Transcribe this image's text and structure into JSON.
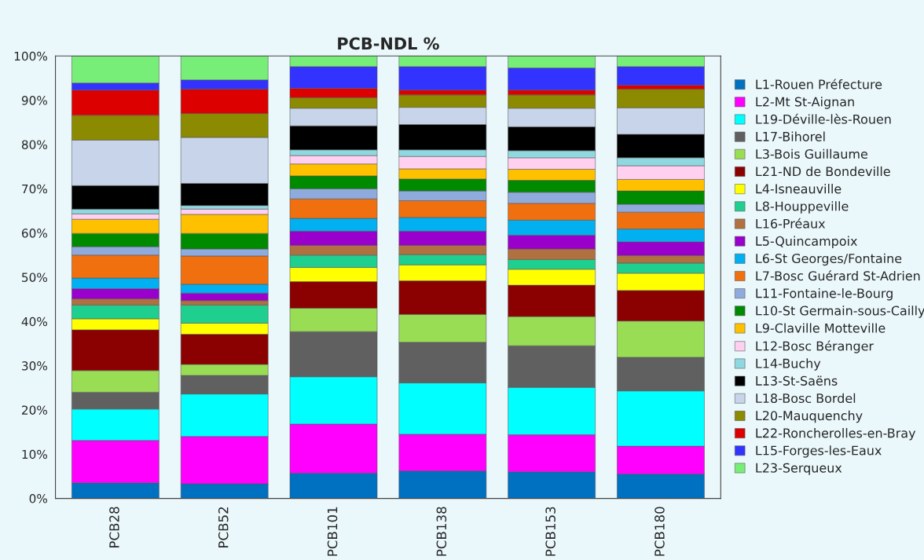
{
  "chart_data": {
    "type": "bar",
    "title": "PCB-NDL %",
    "stacked": true,
    "categories": [
      "PCB28",
      "PCB52",
      "PCB101",
      "PCB138",
      "PCB153",
      "PCB180"
    ],
    "ylim": [
      0,
      100
    ],
    "yticks": [
      {
        "value": 0,
        "label": "0%"
      },
      {
        "value": 10,
        "label": "10%"
      },
      {
        "value": 20,
        "label": "20%"
      },
      {
        "value": 30,
        "label": "30%"
      },
      {
        "value": 40,
        "label": "40%"
      },
      {
        "value": 50,
        "label": "50%"
      },
      {
        "value": 60,
        "label": "60%"
      },
      {
        "value": 70,
        "label": "70%"
      },
      {
        "value": 80,
        "label": "80%"
      },
      {
        "value": 90,
        "label": "90%"
      },
      {
        "value": 100,
        "label": "100%"
      }
    ],
    "grid": false,
    "legend": "right",
    "series": [
      {
        "name": "L1-Rouen Préfecture",
        "color": "#0070c0",
        "values": [
          3.5,
          3.3,
          5.7,
          6.2,
          6.0,
          5.5
        ]
      },
      {
        "name": "L2-Mt St-Aignan",
        "color": "#ff00ff",
        "values": [
          9.6,
          10.7,
          11.1,
          8.3,
          8.4,
          6.3
        ]
      },
      {
        "name": "L19-Déville-lès-Rouen",
        "color": "#00ffff",
        "values": [
          7.1,
          9.6,
          10.7,
          11.6,
          10.7,
          12.5
        ]
      },
      {
        "name": "L17-Bihorel",
        "color": "#606060",
        "values": [
          3.8,
          4.2,
          10.2,
          9.2,
          9.4,
          7.6
        ]
      },
      {
        "name": "L3-Bois Guillaume",
        "color": "#99dd55",
        "values": [
          4.9,
          2.5,
          5.3,
          6.3,
          6.6,
          8.2
        ]
      },
      {
        "name": "L21-ND de Bondeville",
        "color": "#8b0000",
        "values": [
          9.2,
          6.8,
          6.0,
          7.6,
          7.1,
          6.9
        ]
      },
      {
        "name": "L4-Isneauville",
        "color": "#ffff00",
        "values": [
          2.5,
          2.5,
          3.2,
          3.6,
          3.6,
          3.9
        ]
      },
      {
        "name": "L8-Houppeville",
        "color": "#1fcf8f",
        "values": [
          3.1,
          4.1,
          2.8,
          2.3,
          2.2,
          2.3
        ]
      },
      {
        "name": "L16-Préaux",
        "color": "#b07040",
        "values": [
          1.4,
          1.0,
          2.2,
          2.1,
          2.4,
          1.7
        ]
      },
      {
        "name": "L5-Quincampoix",
        "color": "#9900cc",
        "values": [
          2.3,
          1.7,
          3.2,
          3.2,
          3.1,
          3.1
        ]
      },
      {
        "name": "L6-St Georges/Fontaine",
        "color": "#00b0f0",
        "values": [
          2.4,
          2.0,
          2.9,
          3.1,
          3.4,
          2.9
        ]
      },
      {
        "name": "L7-Bosc Guérard St-Adrien",
        "color": "#f07010",
        "values": [
          5.2,
          6.4,
          4.4,
          3.8,
          3.8,
          3.8
        ]
      },
      {
        "name": "L11-Fontaine-le-Bourg",
        "color": "#8faadc",
        "values": [
          1.9,
          1.6,
          2.3,
          2.2,
          2.5,
          1.8
        ]
      },
      {
        "name": "L10-St Germain-sous-Cailly",
        "color": "#008a00",
        "values": [
          3.0,
          3.5,
          2.9,
          2.7,
          2.7,
          3.0
        ]
      },
      {
        "name": "L9-Claville Motteville",
        "color": "#ffc000",
        "values": [
          3.2,
          4.3,
          2.7,
          2.3,
          2.5,
          2.6
        ]
      },
      {
        "name": "L12-Bosc Béranger",
        "color": "#ffd0f0",
        "values": [
          1.2,
          1.2,
          1.9,
          2.8,
          2.6,
          3.1
        ]
      },
      {
        "name": "L14-Buchy",
        "color": "#90d8e0",
        "values": [
          1.1,
          0.8,
          1.3,
          1.5,
          1.6,
          1.8
        ]
      },
      {
        "name": "L13-St-Saëns",
        "color": "#000000",
        "values": [
          5.3,
          5.0,
          5.4,
          5.7,
          5.4,
          5.3
        ]
      },
      {
        "name": "L18-Bosc Bordel",
        "color": "#c8d4ea",
        "values": [
          10.3,
          10.4,
          4.0,
          3.9,
          4.2,
          6.0
        ]
      },
      {
        "name": "L20-Mauquenchy",
        "color": "#8b8a00",
        "values": [
          5.6,
          5.4,
          2.4,
          2.8,
          3.0,
          4.2
        ]
      },
      {
        "name": "L22-Roncherolles-en-Bray",
        "color": "#dd0000",
        "values": [
          5.7,
          5.5,
          2.1,
          1.1,
          1.1,
          0.9
        ]
      },
      {
        "name": "L15-Forges-les-Eaux",
        "color": "#3333ff",
        "values": [
          1.6,
          2.1,
          4.9,
          5.3,
          5.0,
          4.2
        ]
      },
      {
        "name": "L23-Serqueux",
        "color": "#77ee77",
        "values": [
          6.1,
          5.4,
          2.4,
          2.4,
          2.7,
          2.4
        ]
      }
    ]
  }
}
